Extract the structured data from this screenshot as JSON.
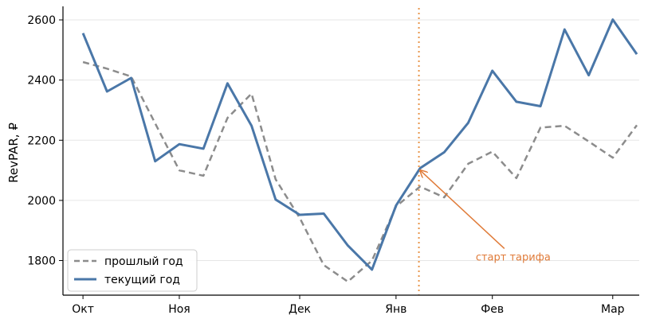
{
  "chart_data": {
    "type": "line",
    "title": "",
    "xlabel": "",
    "ylabel": "RevPAR, ₽",
    "ylim": [
      1685,
      2645
    ],
    "yticks": [
      1800,
      2000,
      2200,
      2400,
      2600
    ],
    "xlim": [
      -0.5,
      23
    ],
    "xticks": [
      {
        "x": 0,
        "label": "Окт"
      },
      {
        "x": 4,
        "label": "Ноя"
      },
      {
        "x": 9,
        "label": "Дек"
      },
      {
        "x": 13,
        "label": "Янв"
      },
      {
        "x": 17,
        "label": "Фев"
      },
      {
        "x": 22,
        "label": "Мар"
      }
    ],
    "grid": "horizontal",
    "legend_position": "bottom-left",
    "x": [
      0,
      1,
      2,
      3,
      4,
      5,
      6,
      7,
      8,
      9,
      10,
      11,
      12,
      13,
      14,
      15,
      16,
      17,
      18,
      19,
      20,
      21,
      22,
      23
    ],
    "series": [
      {
        "name": "прошлый год",
        "style": "dashed",
        "color": "#8c8c8c",
        "values": [
          2460,
          2438,
          2412,
          2256,
          2100,
          2082,
          2274,
          2355,
          2070,
          1942,
          1785,
          1730,
          1800,
          1980,
          2046,
          2010,
          2122,
          2162,
          2074,
          2242,
          2248,
          2196,
          2142,
          2250
        ]
      },
      {
        "name": "текущий год",
        "style": "solid",
        "color": "#4a77a8",
        "values": [
          2556,
          2362,
          2407,
          2130,
          2187,
          2172,
          2389,
          2248,
          2003,
          1952,
          1956,
          1850,
          1770,
          1983,
          2107,
          2160,
          2258,
          2431,
          2328,
          2313,
          2568,
          2416,
          2601,
          2486
        ]
      }
    ],
    "vline": {
      "x": 13.95,
      "color": "#e8954a",
      "style": "dotted"
    },
    "annotation": {
      "text": "старт тарифа",
      "color": "#e07b39",
      "arrow_from": [
        17.5,
        1840
      ],
      "arrow_to": [
        14.0,
        2100
      ]
    }
  }
}
